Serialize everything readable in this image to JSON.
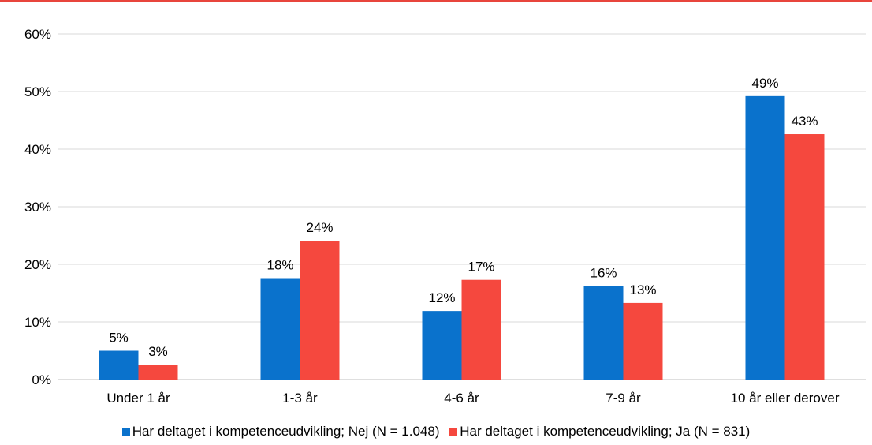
{
  "colors": {
    "top_rule": "#e8453c"
  },
  "chart_data": {
    "type": "bar",
    "categories": [
      "Under 1 år",
      "1-3 år",
      "4-6 år",
      "7-9 år",
      "10 år eller derover"
    ],
    "series": [
      {
        "name": "Har deltaget i kompetenceudvikling; Nej (N = 1.048)",
        "color": "#0a72cc",
        "values": [
          5,
          17.6,
          11.9,
          16.2,
          49.2
        ],
        "labels": [
          "5%",
          "18%",
          "12%",
          "16%",
          "49%"
        ]
      },
      {
        "name": "Har deltaget i kompetenceudvikling; Ja (N = 831)",
        "color": "#f5483e",
        "values": [
          2.6,
          24.1,
          17.3,
          13.3,
          42.6
        ],
        "labels": [
          "3%",
          "24%",
          "17%",
          "13%",
          "43%"
        ]
      }
    ],
    "ylim": [
      0,
      60
    ],
    "yticks": [
      0,
      10,
      20,
      30,
      40,
      50,
      60
    ],
    "ytick_labels": [
      "0%",
      "10%",
      "20%",
      "30%",
      "40%",
      "50%",
      "60%"
    ],
    "grid": true,
    "legend_position": "bottom",
    "title": "",
    "xlabel": "",
    "ylabel": ""
  }
}
